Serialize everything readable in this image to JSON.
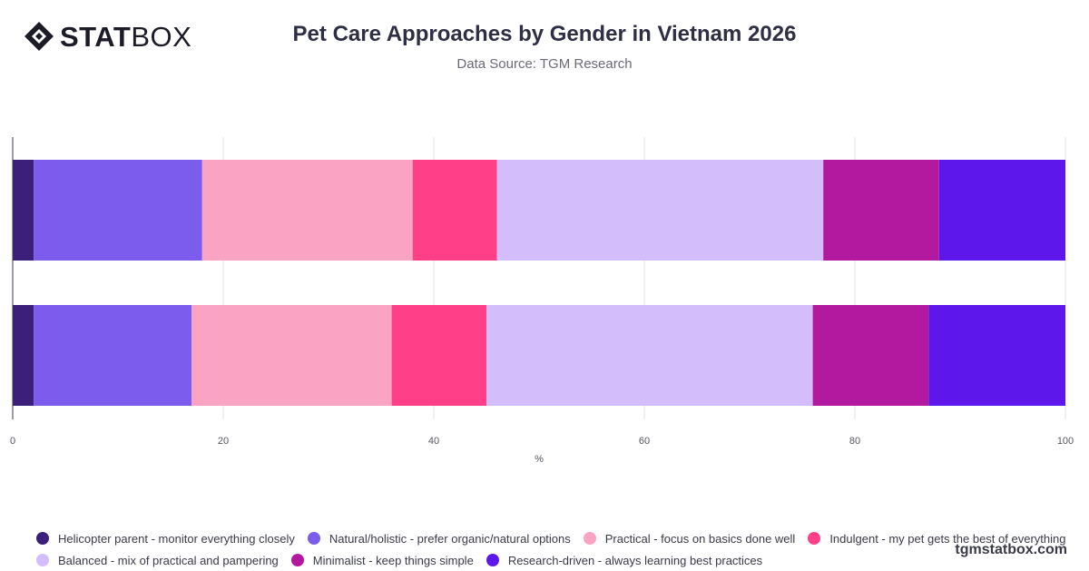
{
  "brand": {
    "logo_bold": "STAT",
    "logo_light": "BOX",
    "website": "tgmstatbox.com"
  },
  "header": {
    "title": "Pet Care Approaches by Gender in Vietnam 2026",
    "subtitle": "Data Source: TGM Research"
  },
  "chart_data": {
    "type": "bar",
    "orientation": "horizontal",
    "stacked": true,
    "title": "Pet Care Approaches by Gender in Vietnam 2026",
    "subtitle": "Data Source: TGM Research",
    "xlabel": "%",
    "ylabel": "",
    "xlim": [
      0,
      100
    ],
    "x_ticks": [
      0,
      20,
      40,
      60,
      80,
      100
    ],
    "grid": true,
    "legend_position": "bottom",
    "categories": [
      "",
      ""
    ],
    "series": [
      {
        "name": "Helicopter parent - monitor everything closely",
        "color": "#3b1f7a",
        "values": [
          2,
          2
        ]
      },
      {
        "name": "Natural/holistic - prefer organic/natural options",
        "color": "#7b5ced",
        "values": [
          16,
          15
        ]
      },
      {
        "name": "Practical - focus on basics done well",
        "color": "#fba3c3",
        "values": [
          20,
          19
        ]
      },
      {
        "name": "Indulgent - my pet gets the best of everything",
        "color": "#ff3f87",
        "values": [
          8,
          9
        ]
      },
      {
        "name": "Balanced - mix of practical and pampering",
        "color": "#d4bdfb",
        "values": [
          31,
          31
        ]
      },
      {
        "name": "Minimalist - keep things simple",
        "color": "#b3199f",
        "values": [
          11,
          11
        ]
      },
      {
        "name": "Research-driven - always learning best practices",
        "color": "#5e17eb",
        "values": [
          12,
          13
        ]
      }
    ]
  }
}
